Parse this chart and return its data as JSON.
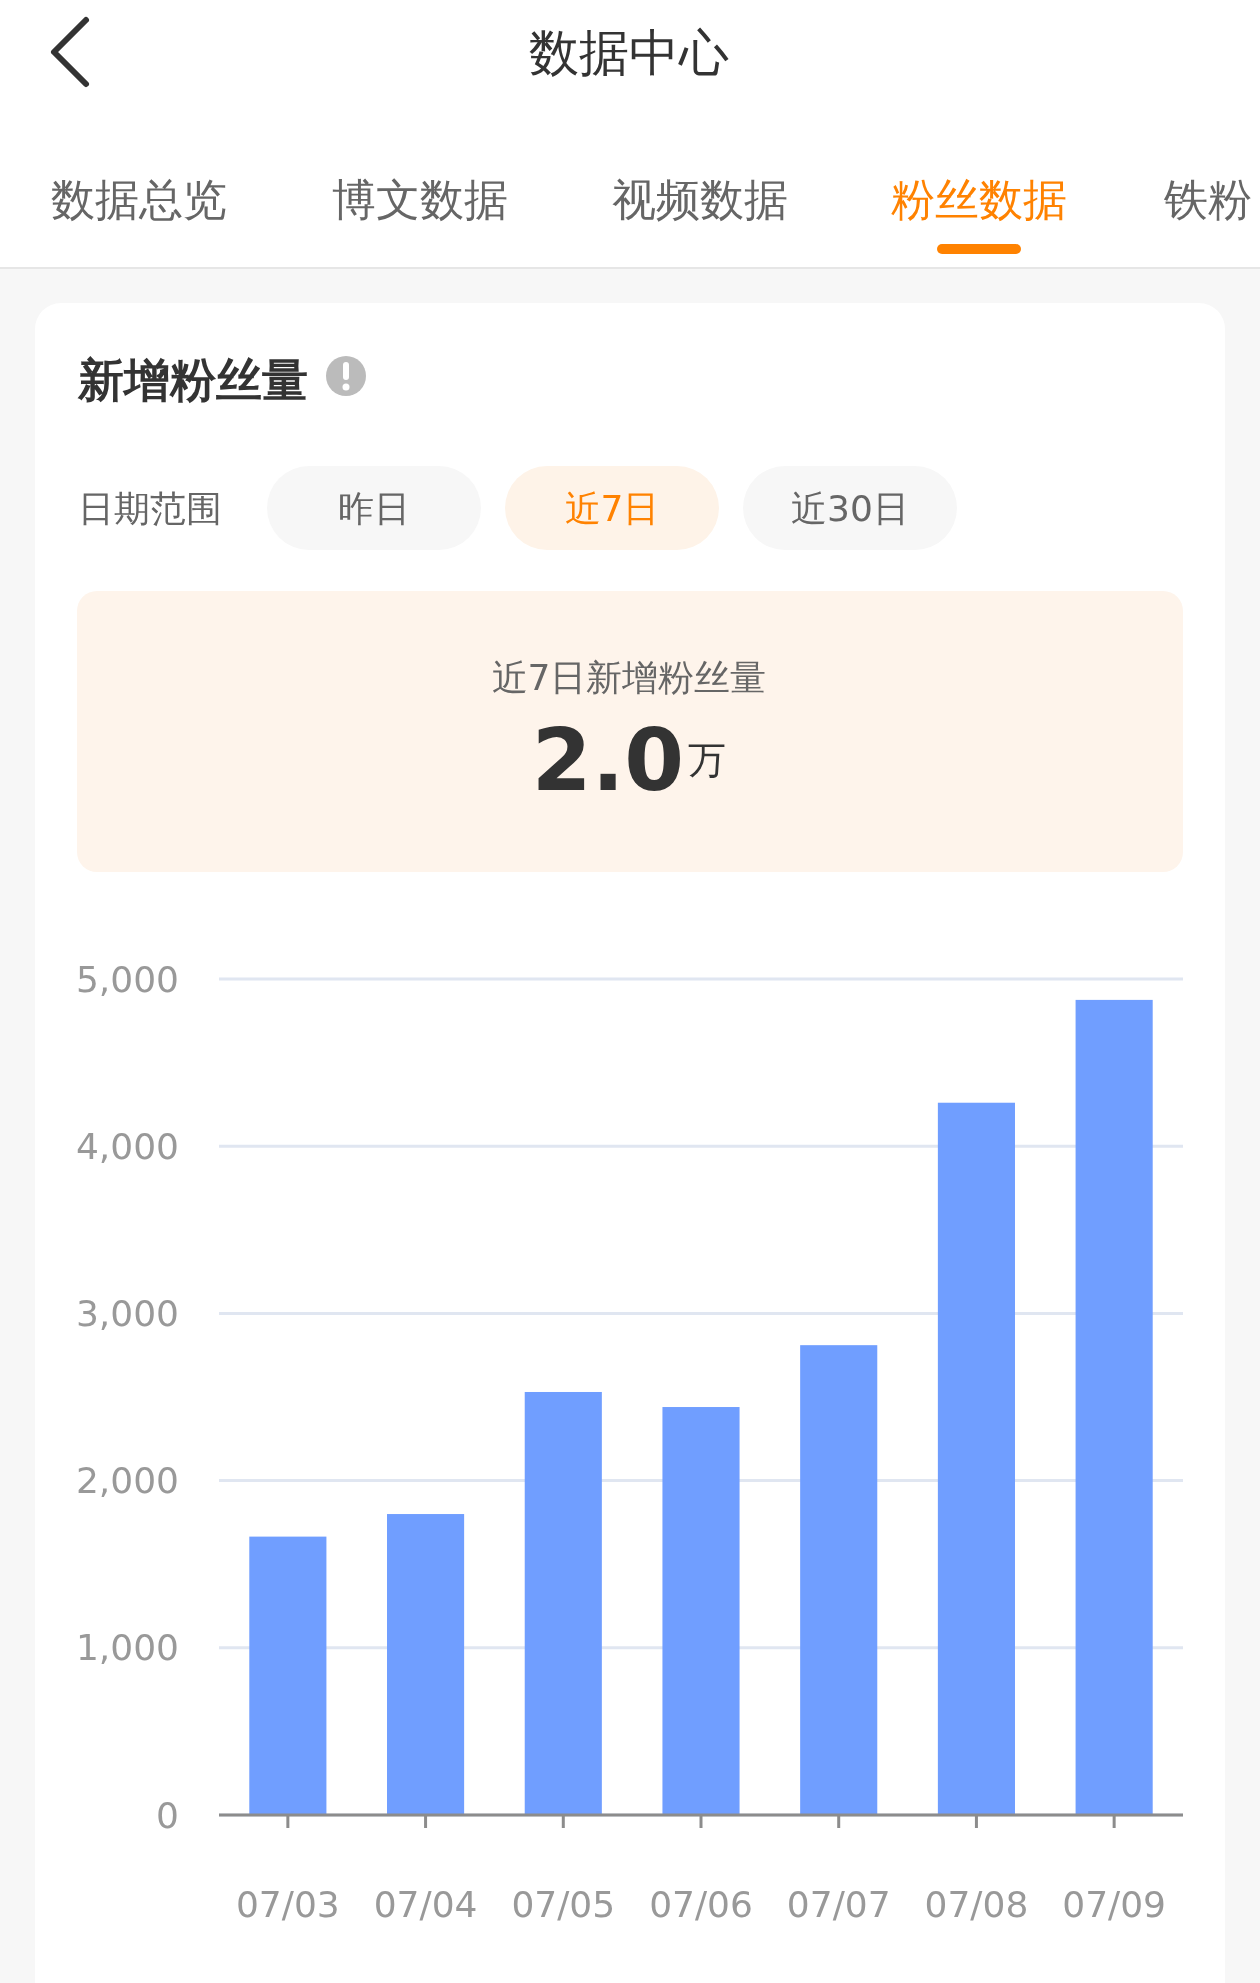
{
  "chart_data": {
    "type": "bar",
    "title": "新增粉丝量",
    "categories": [
      "07/03",
      "07/04",
      "07/05",
      "07/06",
      "07/07",
      "07/08",
      "07/09"
    ],
    "values": [
      1665,
      1800,
      2530,
      2440,
      2810,
      4260,
      4875
    ],
    "color": "#709eff",
    "ylim": [
      0,
      5000
    ],
    "yticks": [
      0,
      {
        "value": 1000,
        "label": "1,000"
      },
      {
        "value": 2000,
        "label": "2,000"
      },
      {
        "value": 3000,
        "label": "3,000"
      },
      {
        "value": 4000,
        "label": "4,000"
      },
      {
        "value": 5000,
        "label": "5,000"
      }
    ],
    "grid": "y",
    "annotations": [
      "数据中心",
      "数据总览",
      "博文数据",
      "视频数据",
      "粉丝数据",
      "铁粉",
      "日期范围",
      "昨日",
      "近7日",
      "近30日",
      "近7日新增粉丝量",
      "2.0万"
    ]
  }
}
